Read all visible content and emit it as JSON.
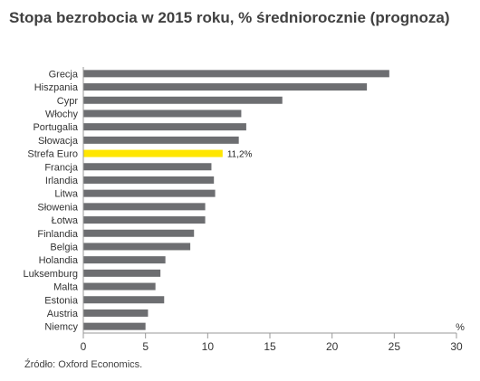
{
  "title": "Stopa bezrobocia w 2015 roku, % średniorocznie (prognoza)",
  "source": "Źródło: Oxford Economics.",
  "chart_data": {
    "type": "bar",
    "orientation": "horizontal",
    "title": "Stopa bezrobocia w 2015 roku, % średniorocznie (prognoza)",
    "categories": [
      "Grecja",
      "Hiszpania",
      "Cypr",
      "Włochy",
      "Portugalia",
      "Słowacja",
      "Strefa Euro",
      "Francja",
      "Irlandia",
      "Litwa",
      "Słowenia",
      "Łotwa",
      "Finlandia",
      "Belgia",
      "Holandia",
      "Luksemburg",
      "Malta",
      "Estonia",
      "Austria",
      "Niemcy"
    ],
    "values": [
      24.6,
      22.8,
      16.0,
      12.7,
      13.1,
      12.5,
      11.2,
      10.3,
      10.5,
      10.6,
      9.8,
      9.8,
      8.9,
      8.6,
      6.6,
      6.2,
      5.8,
      6.5,
      5.2,
      5.0
    ],
    "highlight_index": 6,
    "highlight_label": "11,2%",
    "xlim": [
      0,
      30
    ],
    "x_ticks": [
      0,
      5,
      10,
      15,
      20,
      25,
      30
    ],
    "xlabel": "%",
    "ylabel": "",
    "grid": false,
    "bar_color": "#6d6e71",
    "highlight_color": "#ffe600"
  }
}
